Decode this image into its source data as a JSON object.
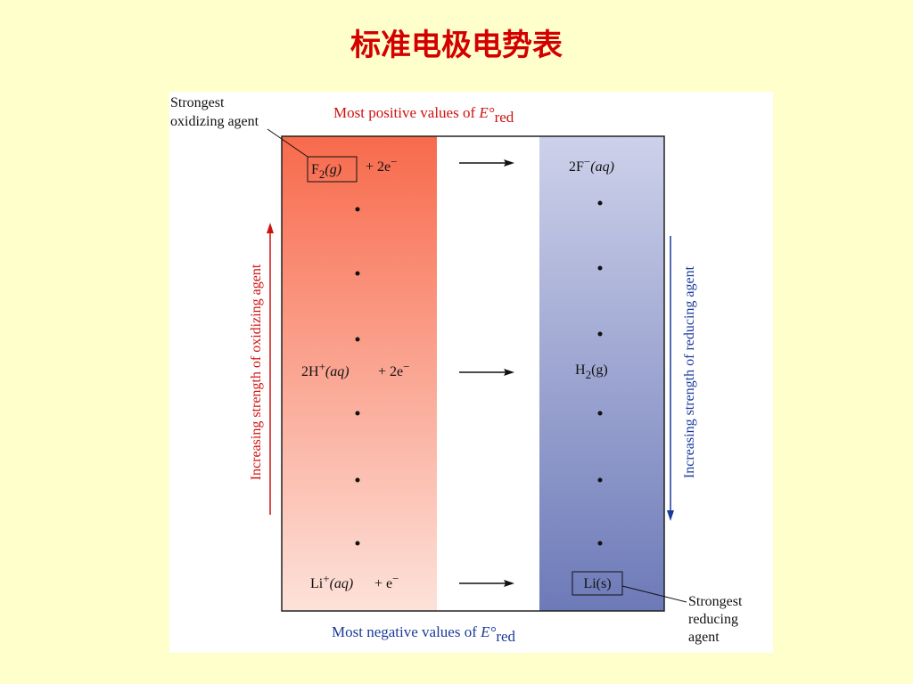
{
  "title": "标准电极电势表",
  "top_label": {
    "text": "Most positive values of ",
    "symbol": "E°",
    "subscript": "red"
  },
  "bottom_label": {
    "text": "Most negative values of ",
    "symbol": "E°",
    "subscript": "red"
  },
  "left_axis": "Increasing strength of oxidizing agent",
  "right_axis": "Increasing strength of reducing agent",
  "strongest_oxidizing": [
    "Strongest",
    "oxidizing agent"
  ],
  "strongest_reducing": [
    "Strongest",
    "reducing",
    "agent"
  ],
  "reactions": [
    {
      "oxidized": [
        "F",
        "2",
        "(g)"
      ],
      "electrons": [
        "+ 2e",
        "−"
      ],
      "reduced": [
        "2F",
        "−",
        "(aq)"
      ]
    },
    {
      "oxidized": [
        "2H",
        "+",
        "(aq)"
      ],
      "electrons": [
        "+ 2e",
        "−"
      ],
      "reduced": [
        "H",
        "2",
        "(g)"
      ]
    },
    {
      "oxidized": [
        "Li",
        "+",
        "(aq)"
      ],
      "electrons": [
        "+ e",
        "−"
      ],
      "reduced": [
        "Li(s)"
      ]
    }
  ]
}
